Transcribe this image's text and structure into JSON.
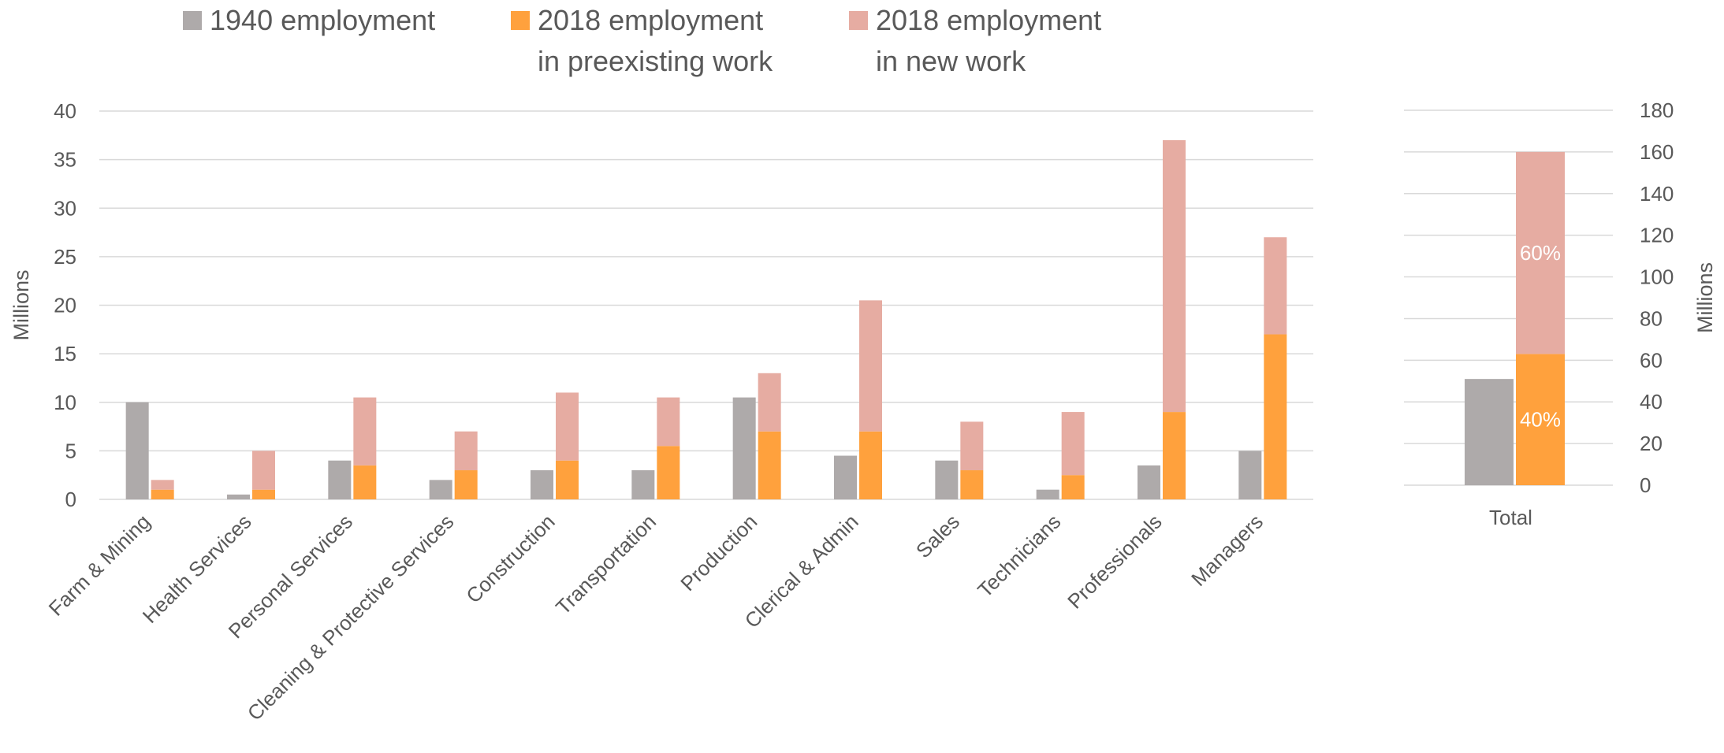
{
  "legend": [
    {
      "lines": [
        "1940 employment"
      ],
      "color": "#aeaaaa"
    },
    {
      "lines": [
        "2018 employment",
        "in preexisting work"
      ],
      "color": "#ffa13d"
    },
    {
      "lines": [
        "2018 employment",
        "in new work"
      ],
      "color": "#e6aca2"
    }
  ],
  "chart_data": [
    {
      "type": "bar",
      "categories": [
        "Farm & Mining",
        "Health Services",
        "Personal Services",
        "Cleaning & Protective Services",
        "Construction",
        "Transportation",
        "Production",
        "Clerical & Admin",
        "Sales",
        "Technicians",
        "Professionals",
        "Managers"
      ],
      "series": [
        {
          "name": "1940 employment",
          "stack": "a",
          "color": "#aeaaaa",
          "values": [
            10,
            0.5,
            4,
            2,
            3,
            3,
            10.5,
            4.5,
            4,
            1,
            3.5,
            5
          ]
        },
        {
          "name": "2018 employment in preexisting work",
          "stack": "b",
          "color": "#ffa13d",
          "values": [
            1,
            1,
            3.5,
            3,
            4,
            5.5,
            7,
            7,
            3,
            2.5,
            9,
            17
          ]
        },
        {
          "name": "2018 employment in new work",
          "stack": "b",
          "color": "#e6aca2",
          "values": [
            1,
            4,
            7,
            4,
            7,
            5,
            6,
            13.5,
            5,
            6.5,
            28,
            10
          ]
        }
      ],
      "ylabel": "Millions",
      "ylim": [
        0,
        40
      ],
      "yticks": [
        0,
        5,
        10,
        15,
        20,
        25,
        30,
        35,
        40
      ],
      "grid": true
    },
    {
      "type": "bar",
      "categories": [
        "Total"
      ],
      "series": [
        {
          "name": "1940 employment",
          "stack": "a",
          "color": "#aeaaaa",
          "values": [
            51
          ]
        },
        {
          "name": "2018 employment in preexisting work",
          "stack": "b",
          "color": "#ffa13d",
          "values": [
            63
          ],
          "data_label": "40%"
        },
        {
          "name": "2018 employment in new work",
          "stack": "b",
          "color": "#e6aca2",
          "values": [
            97
          ],
          "data_label": "60%"
        }
      ],
      "ylabel": "Millions",
      "ylim": [
        0,
        180
      ],
      "yticks": [
        0,
        20,
        40,
        60,
        80,
        100,
        120,
        140,
        160,
        180
      ],
      "grid": true
    }
  ]
}
